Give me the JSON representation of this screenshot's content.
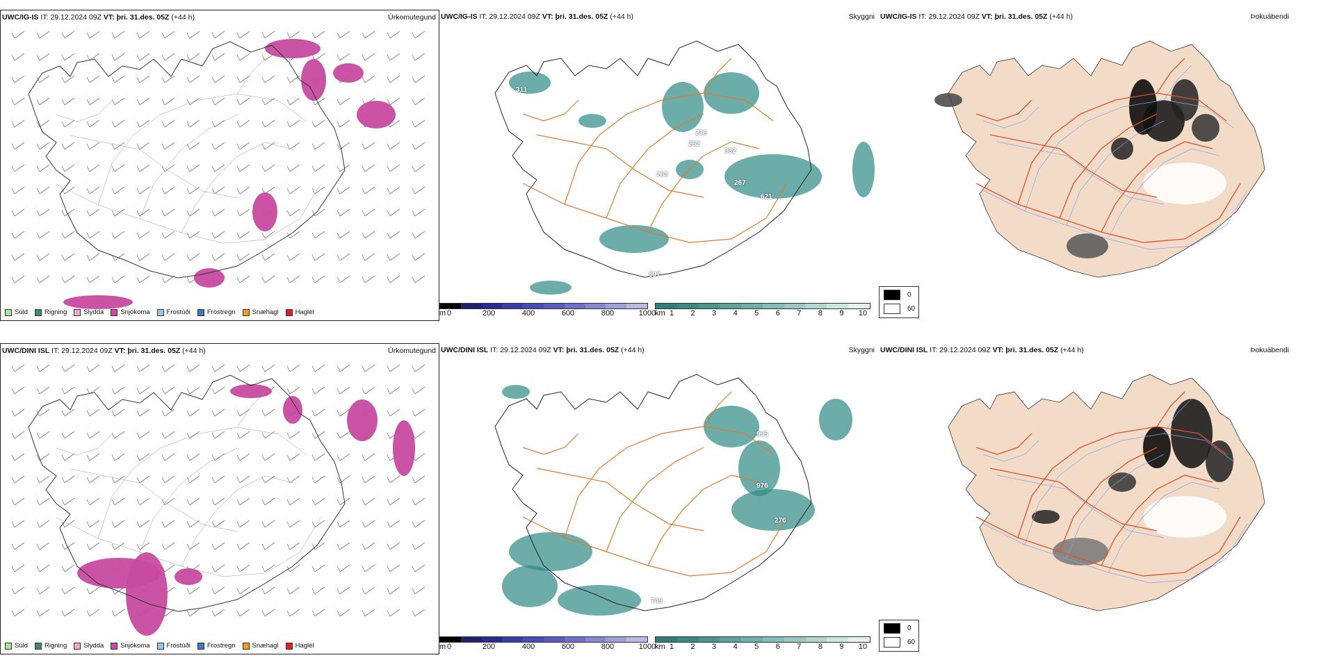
{
  "rows": [
    {
      "model": "UWC/IG-IS",
      "it_label": "IT:",
      "it_value": "29.12.2024 09Z",
      "vt_label": "VT:",
      "vt_value": "þri. 31.des. 05Z",
      "lead": "(+44 h)",
      "values": [
        "311",
        "236",
        "252",
        "332",
        "263",
        "267",
        "621",
        "597"
      ]
    },
    {
      "model": "UWC/DINI ISL",
      "it_label": "IT:",
      "it_value": "29.12.2024 09Z",
      "vt_label": "VT:",
      "vt_value": "þri. 31.des. 05Z",
      "lead": "(+44 h)",
      "values": [
        "995",
        "976",
        "276",
        "749"
      ]
    }
  ],
  "panel_types": {
    "precip": "Úrkomutegund",
    "cloud": "Skyggni",
    "fog": "Þokuábendi"
  },
  "precip_legend": [
    {
      "label": "Súld",
      "color": "#a8e6a0"
    },
    {
      "label": "Rigning",
      "color": "#3a8f5a"
    },
    {
      "label": "Slydda",
      "color": "#f0a8d0"
    },
    {
      "label": "Snjókoma",
      "color": "#c84aa0"
    },
    {
      "label": "Frostúði",
      "color": "#9ac4f0"
    },
    {
      "label": "Frostregn",
      "color": "#3a7ac8"
    },
    {
      "label": "Snæhagl",
      "color": "#f09a20"
    },
    {
      "label": "Haglél",
      "color": "#e02020"
    }
  ],
  "ceiling_scale": {
    "unit": "m",
    "ticks": [
      "0",
      "200",
      "400",
      "600",
      "800",
      "1000"
    ],
    "colors": [
      "#000000",
      "#22226e",
      "#2a2a90",
      "#3a3aa8",
      "#4a4ab8",
      "#5a5ac0",
      "#7070c8",
      "#8888d0",
      "#a0a0d8",
      "#b8b8e0"
    ]
  },
  "visibility_scale": {
    "unit": "km",
    "ticks": [
      "1",
      "2",
      "3",
      "4",
      "5",
      "6",
      "7",
      "8",
      "9",
      "10"
    ],
    "colors": [
      "#2e7f7a",
      "#3a8a84",
      "#4a968f",
      "#5ba39c",
      "#6eafa9",
      "#84bcb7",
      "#9ac9c4",
      "#b2d7d3",
      "#cbe5e2",
      "#e4f2f0"
    ]
  },
  "fog_legend": {
    "top_value": "0",
    "bottom_value": "60",
    "top_color": "#000000",
    "bottom_color": "#ffffff"
  },
  "colors": {
    "snow": "#c84aa0",
    "teal": "#2e8a84",
    "land_fog": "#f2dcc8",
    "roads": "#e07a30",
    "fog_roads": "#e05030",
    "rivers": "#8aa0e8"
  }
}
